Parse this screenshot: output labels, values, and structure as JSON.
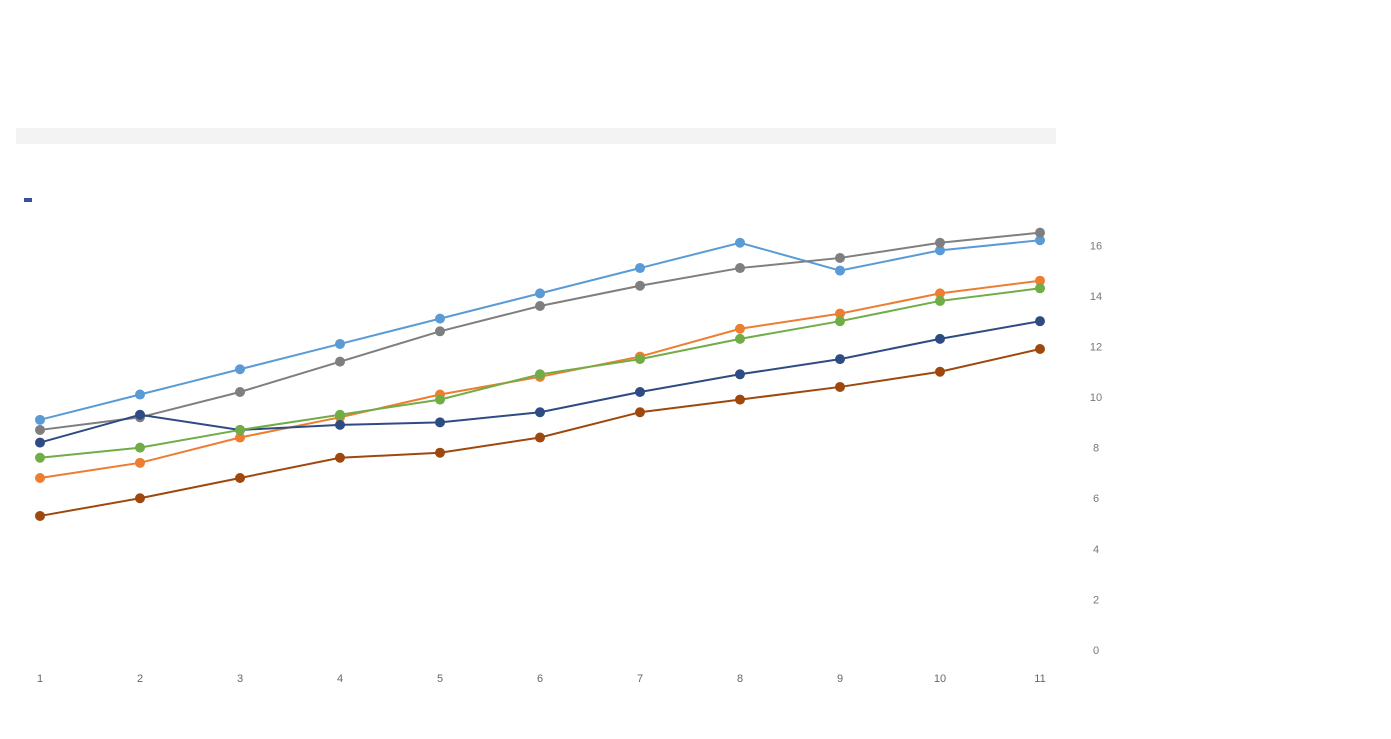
{
  "title_line1": "",
  "title_line2": "",
  "subtitle": "",
  "dataset_label": "",
  "dataset_value": "",
  "chart_data": {
    "type": "line",
    "x": [
      "1",
      "2",
      "3",
      "4",
      "5",
      "6",
      "7",
      "8",
      "9",
      "10",
      "11"
    ],
    "ylim": [
      0,
      17
    ],
    "yticks": [
      16,
      14,
      12,
      10,
      8,
      6,
      4,
      2,
      0
    ],
    "legend_position": "right",
    "series": [
      {
        "name": "",
        "color": "#5b9bd5",
        "values": [
          9.1,
          10.1,
          11.1,
          12.1,
          13.1,
          14.1,
          15.1,
          16.1,
          15.0,
          15.8,
          16.2
        ]
      },
      {
        "name": "",
        "color": "#7f7f7f",
        "values": [
          8.7,
          9.2,
          10.2,
          11.4,
          12.6,
          13.6,
          14.4,
          15.1,
          15.5,
          16.1,
          16.5
        ]
      },
      {
        "name": "",
        "color": "#ed7d31",
        "values": [
          6.8,
          7.4,
          8.4,
          9.2,
          10.1,
          10.8,
          11.6,
          12.7,
          13.3,
          14.1,
          14.6
        ]
      },
      {
        "name": "",
        "color": "#2f4b84",
        "values": [
          8.2,
          9.3,
          8.7,
          8.9,
          9.0,
          9.4,
          10.2,
          10.9,
          11.5,
          12.3,
          13.0
        ]
      },
      {
        "name": "",
        "color": "#70ad47",
        "values": [
          7.6,
          8.0,
          8.7,
          9.3,
          9.9,
          10.9,
          11.5,
          12.3,
          13.0,
          13.8,
          14.3
        ]
      },
      {
        "name": "",
        "color": "#9e480e",
        "values": [
          5.3,
          6.0,
          6.8,
          7.6,
          7.8,
          8.4,
          9.4,
          9.9,
          10.4,
          11.0,
          11.9
        ]
      }
    ]
  }
}
